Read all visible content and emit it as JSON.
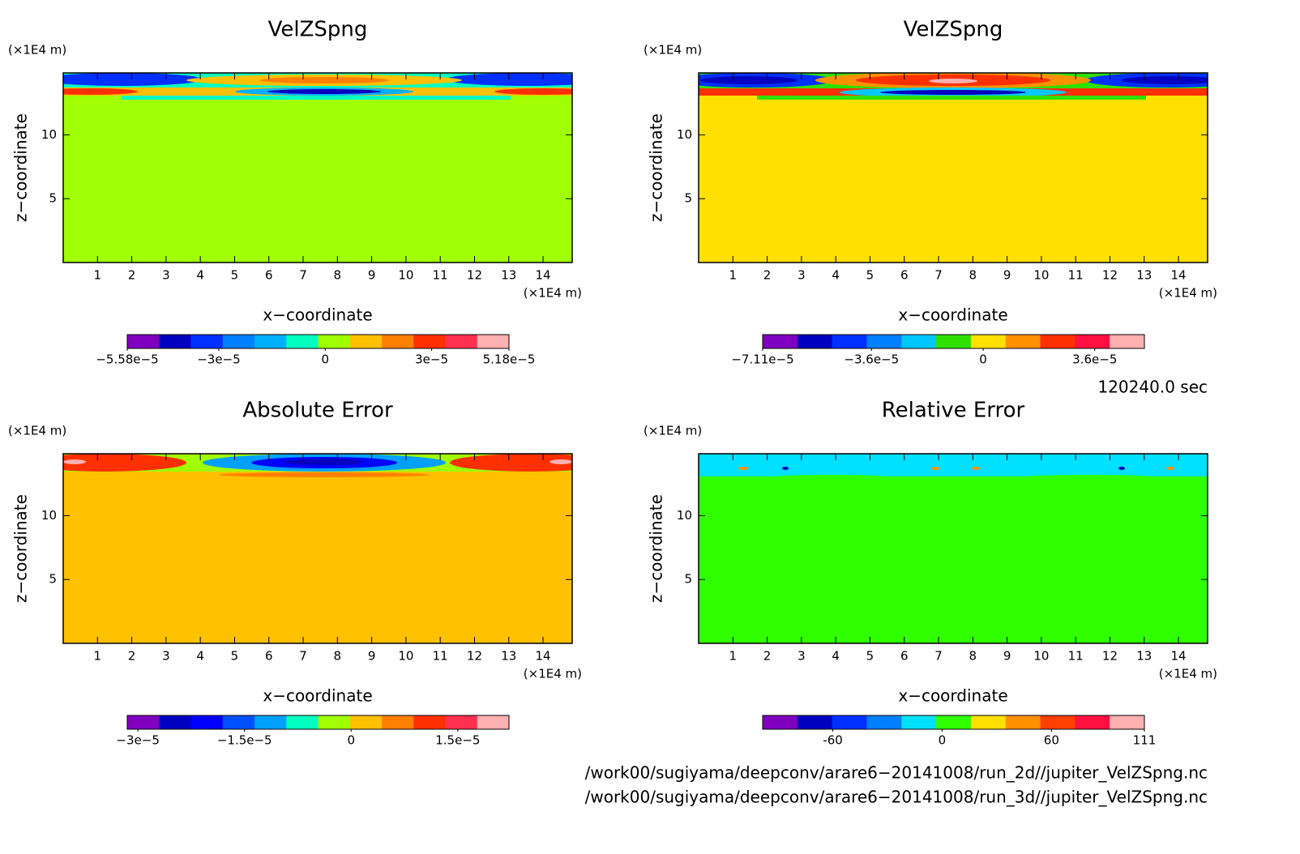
{
  "chart_data": [
    {
      "type": "contour",
      "title": "VelZSpng",
      "xlabel": "x−coordinate",
      "ylabel": "z−coordinate",
      "x_unit": "(×1E4 m)",
      "y_unit": "(×1E4 m)",
      "xlim": [
        0,
        14.85
      ],
      "ylim": [
        0,
        14.85
      ],
      "xticks": [
        1,
        2,
        3,
        4,
        5,
        6,
        7,
        8,
        9,
        10,
        11,
        12,
        13,
        14
      ],
      "yticks": [
        5,
        10
      ],
      "colorbar": {
        "lim": [
          -5.58e-05,
          5.18e-05
        ],
        "ticks": [
          {
            "value": -5.58e-05,
            "label": "−5.58e−5"
          },
          {
            "value": -3e-05,
            "label": "−3e−5"
          },
          0,
          {
            "value": 3e-05,
            "label": "3e−5"
          },
          {
            "value": 5.18e-05,
            "label": "5.18e−5"
          }
        ],
        "colors": [
          "#8000c0",
          "#0000c0",
          "#0030ff",
          "#0080ff",
          "#00b0ff",
          "#00ffc0",
          "#a0ff00",
          "#ffc000",
          "#ff8000",
          "#ff3000",
          "#ff3050",
          "#ffb0b0"
        ]
      }
    },
    {
      "type": "contour",
      "title": "VelZSpng",
      "xlabel": "x−coordinate",
      "ylabel": "z−coordinate",
      "x_unit": "(×1E4 m)",
      "y_unit": "(×1E4 m)",
      "xlim": [
        0,
        14.85
      ],
      "ylim": [
        0,
        14.85
      ],
      "xticks": [
        1,
        2,
        3,
        4,
        5,
        6,
        7,
        8,
        9,
        10,
        11,
        12,
        13,
        14
      ],
      "yticks": [
        5,
        10
      ],
      "colorbar": {
        "lim": [
          -7.11e-05,
          5.2e-05
        ],
        "ticks": [
          {
            "value": -7.11e-05,
            "label": "−7.11e−5"
          },
          {
            "value": -3.6e-05,
            "label": "−3.6e−5"
          },
          0,
          {
            "value": 3.6e-05,
            "label": "3.6e−5"
          }
        ],
        "colors": [
          "#8000c0",
          "#0000c0",
          "#0030ff",
          "#0080ff",
          "#00c8ff",
          "#30e000",
          "#ffe000",
          "#ff9000",
          "#ff3000",
          "#ff1040",
          "#ffb0b0"
        ]
      }
    },
    {
      "type": "contour",
      "title": "Absolute Error",
      "xlabel": "x−coordinate",
      "ylabel": "z−coordinate",
      "x_unit": "(×1E4 m)",
      "y_unit": "(×1E4 m)",
      "xlim": [
        0,
        14.85
      ],
      "ylim": [
        0,
        14.85
      ],
      "xticks": [
        1,
        2,
        3,
        4,
        5,
        6,
        7,
        8,
        9,
        10,
        11,
        12,
        13,
        14
      ],
      "yticks": [
        5,
        10
      ],
      "colorbar": {
        "lim": [
          -3.15e-05,
          2.22e-05
        ],
        "ticks": [
          {
            "value": -3e-05,
            "label": "−3e−5"
          },
          {
            "value": -1.5e-05,
            "label": "−1.5e−5"
          },
          0,
          {
            "value": 1.5e-05,
            "label": "1.5e−5"
          }
        ],
        "colors": [
          "#8000c0",
          "#0000c0",
          "#0000ff",
          "#0050ff",
          "#00a0ff",
          "#00ffc0",
          "#a0ff00",
          "#ffc000",
          "#ff8000",
          "#ff3000",
          "#ff3050",
          "#ffb0b0"
        ]
      }
    },
    {
      "type": "contour",
      "title": "Relative Error",
      "xlabel": "x−coordinate",
      "ylabel": "z−coordinate",
      "x_unit": "(×1E4 m)",
      "y_unit": "(×1E4 m)",
      "xlim": [
        0,
        14.85
      ],
      "ylim": [
        0,
        14.85
      ],
      "xticks": [
        1,
        2,
        3,
        4,
        5,
        6,
        7,
        8,
        9,
        10,
        11,
        12,
        13,
        14
      ],
      "yticks": [
        5,
        10
      ],
      "colorbar": {
        "lim": [
          -98.5,
          111
        ],
        "ticks": [
          -60,
          0,
          60,
          111
        ],
        "colors": [
          "#8000c0",
          "#0000c0",
          "#0030ff",
          "#0080ff",
          "#00e0ff",
          "#30ff00",
          "#ffe000",
          "#ff9000",
          "#ff4000",
          "#ff1040",
          "#ffb0b0"
        ]
      }
    }
  ],
  "time_label": "120240.0 sec",
  "files": [
    "/work00/sugiyama/deepconv/arare6−20141008/run_2d//jupiter_VelZSpng.nc",
    "/work00/sugiyama/deepconv/arare6−20141008/run_3d//jupiter_VelZSpng.nc"
  ]
}
